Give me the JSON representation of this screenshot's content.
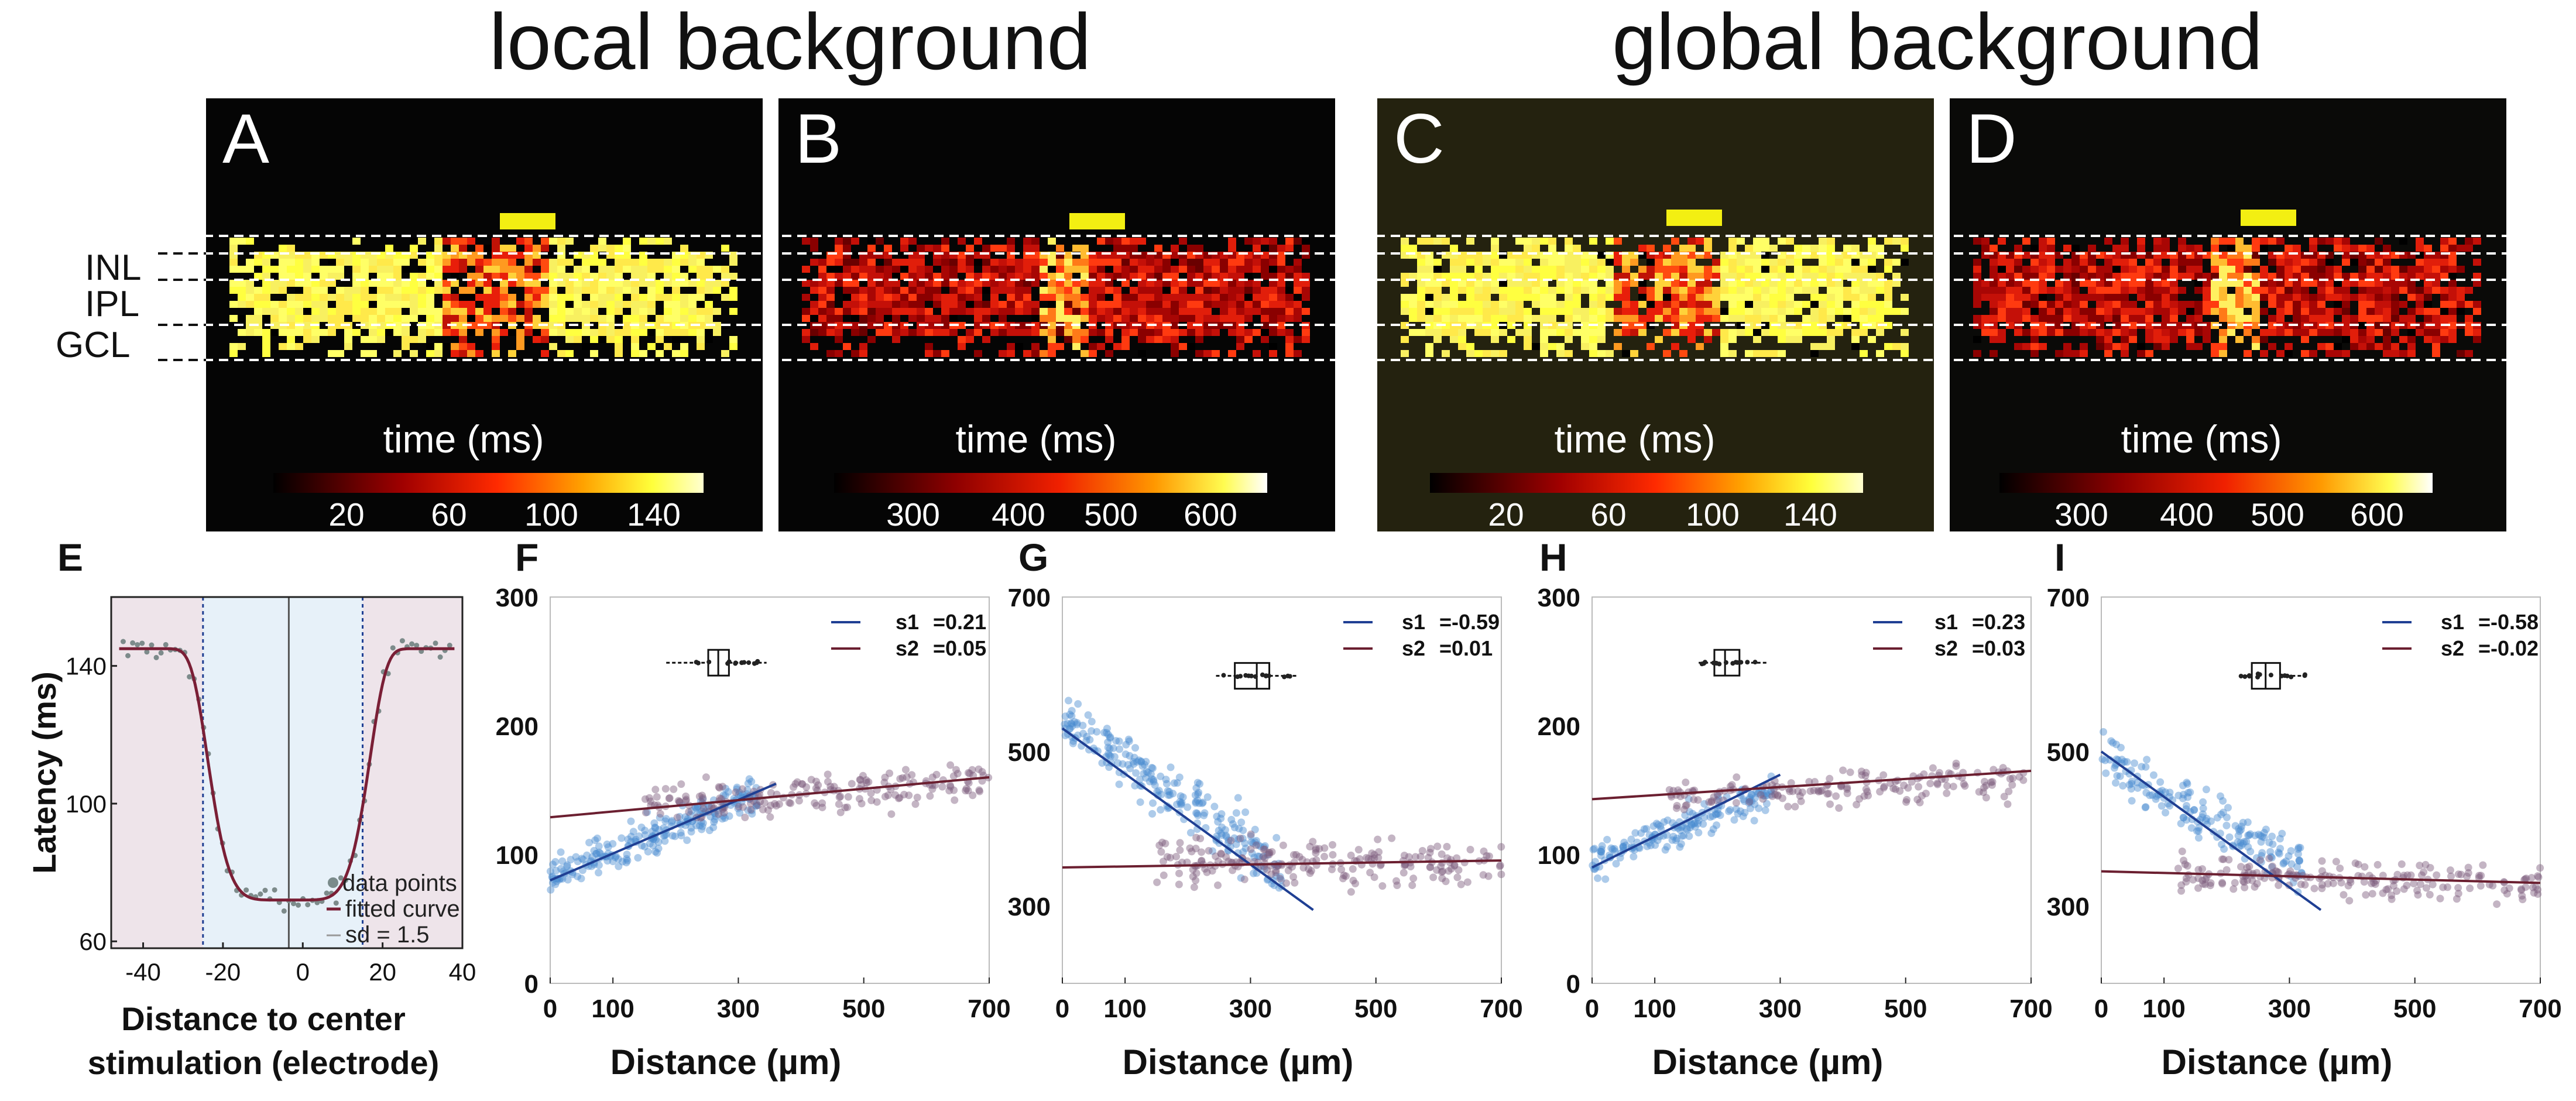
{
  "titles": {
    "local": "local background",
    "global": "global background"
  },
  "layers": [
    "INL",
    "IPL",
    "GCL"
  ],
  "heatmaps": [
    {
      "letter": "A",
      "cbar_label": "time (ms)",
      "ticks": [
        "20",
        "60",
        "100",
        "140"
      ],
      "bg": "#050505",
      "cmap": "hot1",
      "seed": 11
    },
    {
      "letter": "B",
      "cbar_label": "time (ms)",
      "ticks": [
        "300",
        "400",
        "500",
        "600"
      ],
      "bg": "#050505",
      "cmap": "hot2",
      "seed": 23
    },
    {
      "letter": "C",
      "cbar_label": "time (ms)",
      "ticks": [
        "20",
        "60",
        "100",
        "140"
      ],
      "bg": "#24220f",
      "cmap": "hot1",
      "seed": 37
    },
    {
      "letter": "D",
      "cbar_label": "time (ms)",
      "ticks": [
        "300",
        "400",
        "500",
        "600"
      ],
      "bg": "#0a0a08",
      "cmap": "hot2",
      "seed": 53
    }
  ],
  "colors": {
    "stim_bar": "#f3ef12",
    "fit_line": "#7a1f36",
    "blue_line": "#1f3f93",
    "maroon_line": "#6b1f30",
    "blue_pts": "#4a8cd0",
    "purple_pts": "#7d5a7c",
    "shade_blue": "#e7f1f9",
    "shade_pink": "#eee4ea"
  },
  "chart_data": [
    {
      "id": "E",
      "type": "scatter",
      "xlabel_lines": [
        "Distance to center",
        "stimulation (electrode)"
      ],
      "ylabel": "Latency (ms)",
      "xlim": [
        -48,
        40
      ],
      "ylim": [
        58,
        160
      ],
      "xticks": [
        -40,
        -20,
        0,
        20,
        40
      ],
      "yticks": [
        60,
        100,
        140
      ],
      "xtick_labels": [
        "-40",
        "-20",
        "0",
        "20",
        "40"
      ],
      "ytick_labels": [
        "60",
        "100",
        "140"
      ],
      "legend": [
        "data points",
        "fitted curve",
        "sd = 1.5"
      ],
      "shaded": {
        "center": -3.5,
        "sd_lines": [
          -25,
          15
        ]
      },
      "fit": {
        "baseline": 145,
        "min": 72,
        "center": -3.5,
        "width": 21,
        "power": 6
      },
      "n_points": 70
    },
    {
      "id": "F",
      "type": "scatter",
      "xlabel": "Distance (µm)",
      "xlim": [
        0,
        700
      ],
      "ylim": [
        0,
        300
      ],
      "xticks": [
        0,
        100,
        300,
        500,
        700
      ],
      "yticks": [
        0,
        100,
        200,
        300
      ],
      "xtick_labels": [
        "0",
        "100",
        "300",
        "500",
        "700"
      ],
      "ytick_labels": [
        "0",
        "100",
        "200",
        "300"
      ],
      "series": [
        {
          "name": "s1",
          "slope": "0.21",
          "line": {
            "x": [
              0,
              360
            ],
            "y": [
              80,
              155
            ]
          },
          "points": {
            "x": [
              0,
              330
            ],
            "y0": 82,
            "y1": 147,
            "spread": 24,
            "n": 230
          }
        },
        {
          "name": "s2",
          "slope": "0.05",
          "line": {
            "x": [
              0,
              700
            ],
            "y": [
              129,
              160
            ]
          },
          "points": {
            "x": [
              150,
              700
            ],
            "y0": 137,
            "y1": 157,
            "spread": 24,
            "n": 190
          }
        }
      ],
      "boxplot": {
        "y": 249,
        "whisker": [
          185,
          345
        ],
        "q1": 252,
        "q3": 285,
        "median": 268
      }
    },
    {
      "id": "G",
      "type": "scatter",
      "xlabel": "Distance (µm)",
      "xlim": [
        0,
        700
      ],
      "ylim": [
        200,
        700
      ],
      "xticks": [
        0,
        100,
        300,
        500,
        700
      ],
      "yticks": [
        300,
        500,
        700
      ],
      "xtick_labels": [
        "0",
        "100",
        "300",
        "500",
        "700"
      ],
      "ytick_labels": [
        "300",
        "500",
        "700"
      ],
      "series": [
        {
          "name": "s1",
          "slope": "-0.59",
          "line": {
            "x": [
              0,
              400
            ],
            "y": [
              530,
              295
            ]
          },
          "points": {
            "x": [
              0,
              350
            ],
            "y0": 545,
            "y1": 345,
            "spread": 60,
            "n": 230
          }
        },
        {
          "name": "s2",
          "slope": "0.01",
          "line": {
            "x": [
              0,
              700
            ],
            "y": [
              350,
              359
            ]
          },
          "points": {
            "x": [
              150,
              700
            ],
            "y0": 362,
            "y1": 352,
            "spread": 55,
            "n": 210
          }
        }
      ],
      "boxplot": {
        "y": 598,
        "whisker": [
          245,
          375
        ],
        "q1": 275,
        "q3": 330,
        "median": 310
      }
    },
    {
      "id": "H",
      "type": "scatter",
      "xlabel": "Distance (µm)",
      "xlim": [
        0,
        700
      ],
      "ylim": [
        0,
        300
      ],
      "xticks": [
        0,
        100,
        300,
        500,
        700
      ],
      "yticks": [
        0,
        100,
        200,
        300
      ],
      "xtick_labels": [
        "0",
        "100",
        "300",
        "500",
        "700"
      ],
      "ytick_labels": [
        "0",
        "100",
        "200",
        "300"
      ],
      "series": [
        {
          "name": "s1",
          "slope": "0.23",
          "line": {
            "x": [
              0,
              300
            ],
            "y": [
              90,
              162
            ]
          },
          "points": {
            "x": [
              0,
              290
            ],
            "y0": 95,
            "y1": 150,
            "spread": 22,
            "n": 170
          }
        },
        {
          "name": "s2",
          "slope": "0.03",
          "line": {
            "x": [
              0,
              700
            ],
            "y": [
              143,
              165
            ]
          },
          "points": {
            "x": [
              120,
              690
            ],
            "y0": 145,
            "y1": 160,
            "spread": 24,
            "n": 170
          }
        }
      ],
      "boxplot": {
        "y": 249,
        "whisker": [
          170,
          280
        ],
        "q1": 195,
        "q3": 235,
        "median": 212
      }
    },
    {
      "id": "I",
      "type": "scatter",
      "xlabel": "Distance (µm)",
      "xlim": [
        0,
        700
      ],
      "ylim": [
        200,
        700
      ],
      "xticks": [
        0,
        100,
        300,
        500,
        700
      ],
      "yticks": [
        300,
        500,
        700
      ],
      "xtick_labels": [
        "0",
        "100",
        "300",
        "500",
        "700"
      ],
      "ytick_labels": [
        "300",
        "500",
        "700"
      ],
      "series": [
        {
          "name": "s1",
          "slope": "-0.58",
          "line": {
            "x": [
              0,
              350
            ],
            "y": [
              500,
              295
            ]
          },
          "points": {
            "x": [
              0,
              320
            ],
            "y0": 495,
            "y1": 345,
            "spread": 55,
            "n": 180
          }
        },
        {
          "name": "s2",
          "slope": "-0.02",
          "line": {
            "x": [
              0,
              700
            ],
            "y": [
              345,
              330
            ]
          },
          "points": {
            "x": [
              120,
              700
            ],
            "y0": 345,
            "y1": 325,
            "spread": 40,
            "n": 190
          }
        }
      ],
      "boxplot": {
        "y": 598,
        "whisker": [
          220,
          330
        ],
        "q1": 240,
        "q3": 285,
        "median": 262
      }
    }
  ]
}
